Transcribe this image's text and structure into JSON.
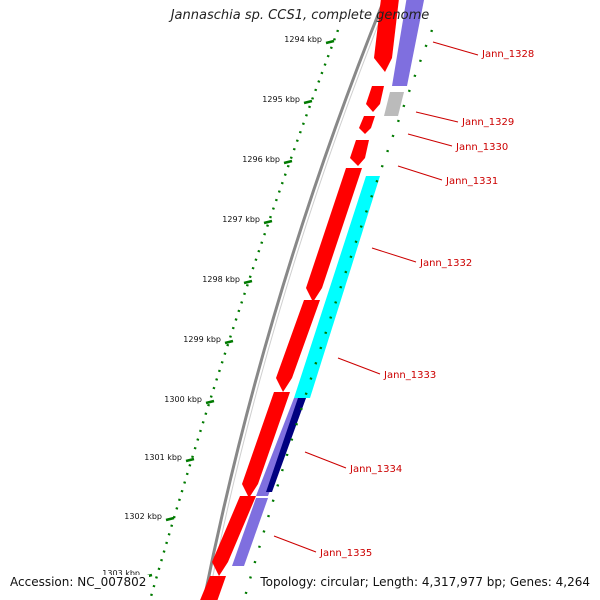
{
  "title": "Jannaschia sp. CCS1, complete genome",
  "footer": {
    "accession": "Accession: NC_007802",
    "stats": "Topology: circular; Length: 4,317,977 bp; Genes: 4,264"
  },
  "colors": {
    "backbone": "#888888",
    "forward_gene": "#ff0000",
    "reverse_gene": "#7f6fdf",
    "reverse_gene_dark": "#00007f",
    "cyan_gene": "#00ffff",
    "grey_gene": "#bbbbbb",
    "ruler": "#007a00",
    "label": "#cc0000"
  },
  "ruler": {
    "unit": "kbp",
    "labels": [
      "1294 kbp",
      "1295 kbp",
      "1296 kbp",
      "1297 kbp",
      "1298 kbp",
      "1299 kbp",
      "1300 kbp",
      "1301 kbp",
      "1302 kbp",
      "1303 kbp"
    ]
  },
  "gene_labels": [
    "Jann_1328",
    "Jann_1329",
    "Jann_1330",
    "Jann_1331",
    "Jann_1332",
    "Jann_1333",
    "Jann_1334",
    "Jann_1335"
  ]
}
